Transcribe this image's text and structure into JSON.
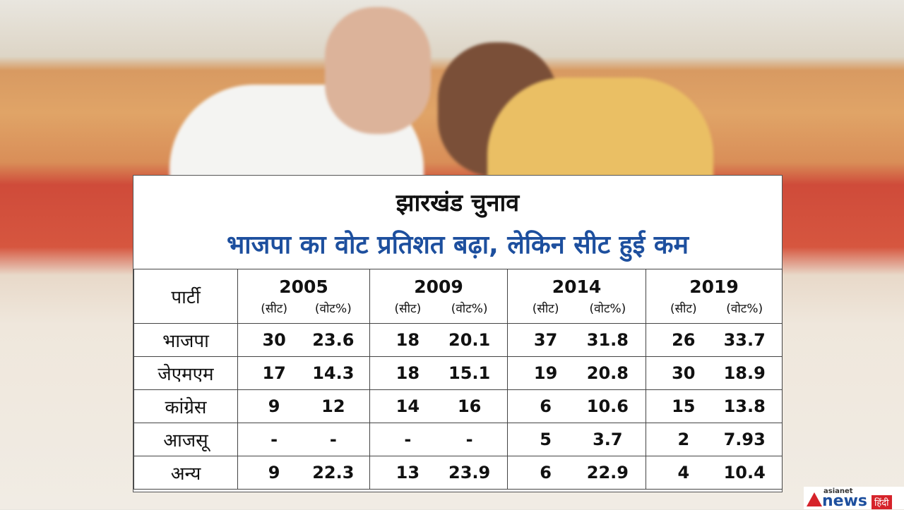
{
  "title": "झारखंड चुनाव",
  "subtitle": "भाजपा का वोट प्रतिशत बढ़ा, लेकिन सीट हुई कम",
  "table": {
    "party_header": "पार्टी",
    "columns": [
      {
        "year": "2005",
        "sub": [
          "(सीट)",
          "(वोट%)"
        ]
      },
      {
        "year": "2009",
        "sub": [
          "(सीट)",
          "(वोट%)"
        ]
      },
      {
        "year": "2014",
        "sub": [
          "(सीट)",
          "(वोट%)"
        ]
      },
      {
        "year": "2019",
        "sub": [
          "(सीट)",
          "(वोट%)"
        ]
      }
    ],
    "rows": [
      {
        "party": "भाजपा",
        "values": [
          "30",
          "23.6",
          "18",
          "20.1",
          "37",
          "31.8",
          "26",
          "33.7"
        ]
      },
      {
        "party": "जेएमएम",
        "values": [
          "17",
          "14.3",
          "18",
          "15.1",
          "19",
          "20.8",
          "30",
          "18.9"
        ]
      },
      {
        "party": "कांग्रेस",
        "values": [
          "9",
          "12",
          "14",
          "16",
          "6",
          "10.6",
          "15",
          "13.8"
        ]
      },
      {
        "party": "आजसू",
        "values": [
          "-",
          "-",
          "-",
          "-",
          "5",
          "3.7",
          "2",
          "7.93"
        ]
      },
      {
        "party": "अन्य",
        "values": [
          "9",
          "22.3",
          "13",
          "23.9",
          "6",
          "22.9",
          "4",
          "10.4"
        ]
      }
    ]
  },
  "logo": {
    "brand": "asianet",
    "name": "news",
    "lang": "हिंदी"
  }
}
